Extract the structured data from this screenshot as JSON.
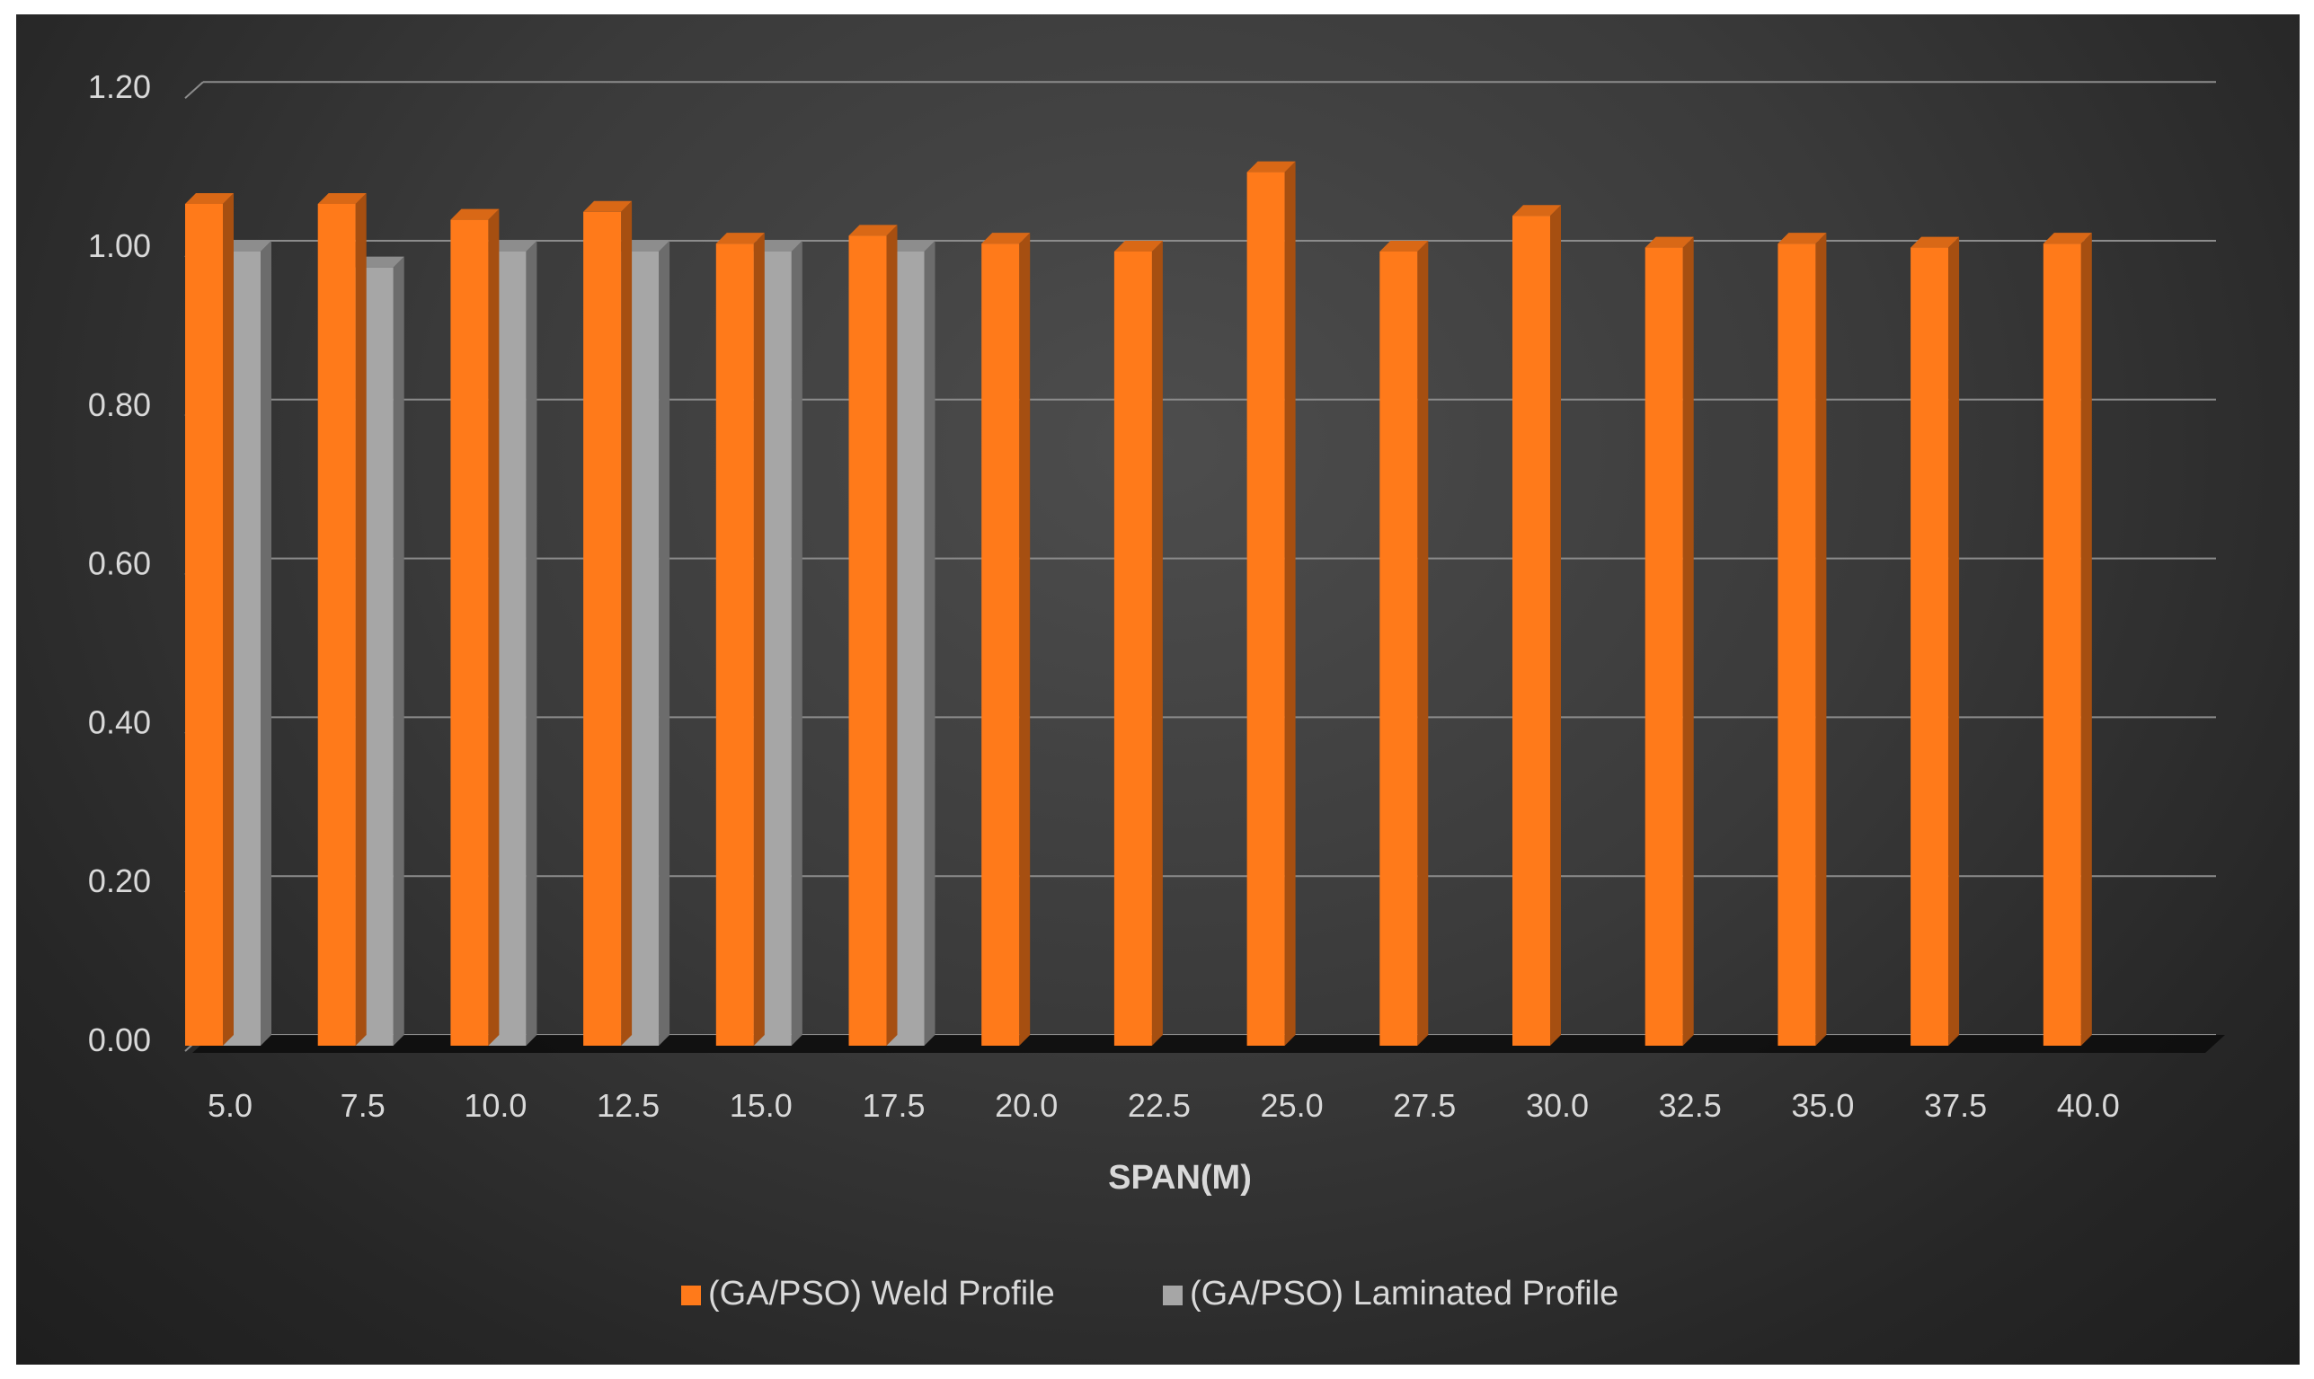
{
  "chart_data": {
    "type": "bar",
    "title": "",
    "xlabel": "SPAN(M)",
    "ylabel": "",
    "ylim": [
      0,
      1.2
    ],
    "yticks": [
      "0.00",
      "0.20",
      "0.40",
      "0.60",
      "0.80",
      "1.00",
      "1.20"
    ],
    "categories": [
      "5.0",
      "7.5",
      "10.0",
      "12.5",
      "15.0",
      "17.5",
      "20.0",
      "22.5",
      "25.0",
      "27.5",
      "30.0",
      "32.5",
      "35.0",
      "37.5",
      "40.0"
    ],
    "series": [
      {
        "name": "(GA/PSO) Weld Profile",
        "color": "#ff7a1a",
        "values": [
          1.06,
          1.06,
          1.04,
          1.05,
          1.01,
          1.02,
          1.01,
          1.0,
          1.1,
          1.0,
          1.045,
          1.005,
          1.01,
          1.005,
          1.01
        ]
      },
      {
        "name": "(GA/PSO) Laminated Profile",
        "color": "#a6a6a6",
        "values": [
          1.0,
          0.98,
          1.0,
          1.0,
          1.0,
          1.0,
          null,
          null,
          null,
          null,
          null,
          null,
          null,
          null,
          null
        ]
      }
    ],
    "grid": true,
    "legend_position": "bottom"
  }
}
